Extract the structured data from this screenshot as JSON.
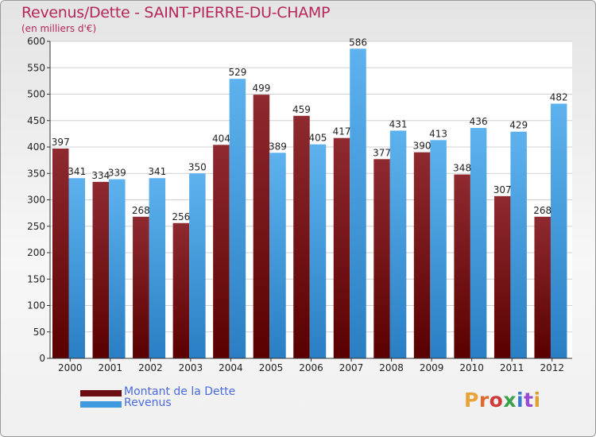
{
  "title": "Revenus/Dette - SAINT-PIERRE-DU-CHAMP",
  "subtitle": "(en milliers d'€)",
  "logo": "Proxiti",
  "legend": [
    {
      "label": "Montant de la Dette",
      "color": "#6b0d12"
    },
    {
      "label": "Revenus",
      "color": "#3f9ae0"
    }
  ],
  "chart_data": {
    "type": "bar",
    "title": "Revenus/Dette - SAINT-PIERRE-DU-CHAMP",
    "ylabel": "(en milliers d'€)",
    "categories": [
      "2000",
      "2001",
      "2002",
      "2003",
      "2004",
      "2005",
      "2006",
      "2007",
      "2008",
      "2009",
      "2010",
      "2011",
      "2012"
    ],
    "series": [
      {
        "name": "Montant de la Dette",
        "color": "#6b0d12",
        "values": [
          397,
          334,
          268,
          256,
          404,
          499,
          459,
          417,
          377,
          390,
          348,
          307,
          268
        ]
      },
      {
        "name": "Revenus",
        "color": "#3f9ae0",
        "values": [
          341,
          339,
          341,
          350,
          529,
          389,
          405,
          586,
          431,
          413,
          436,
          429,
          482
        ]
      }
    ],
    "ylim": [
      0,
      600
    ],
    "yticks": [
      0,
      50,
      100,
      150,
      200,
      250,
      300,
      350,
      400,
      450,
      500,
      550,
      600
    ],
    "grid": true,
    "legend_position": "bottom-left"
  }
}
